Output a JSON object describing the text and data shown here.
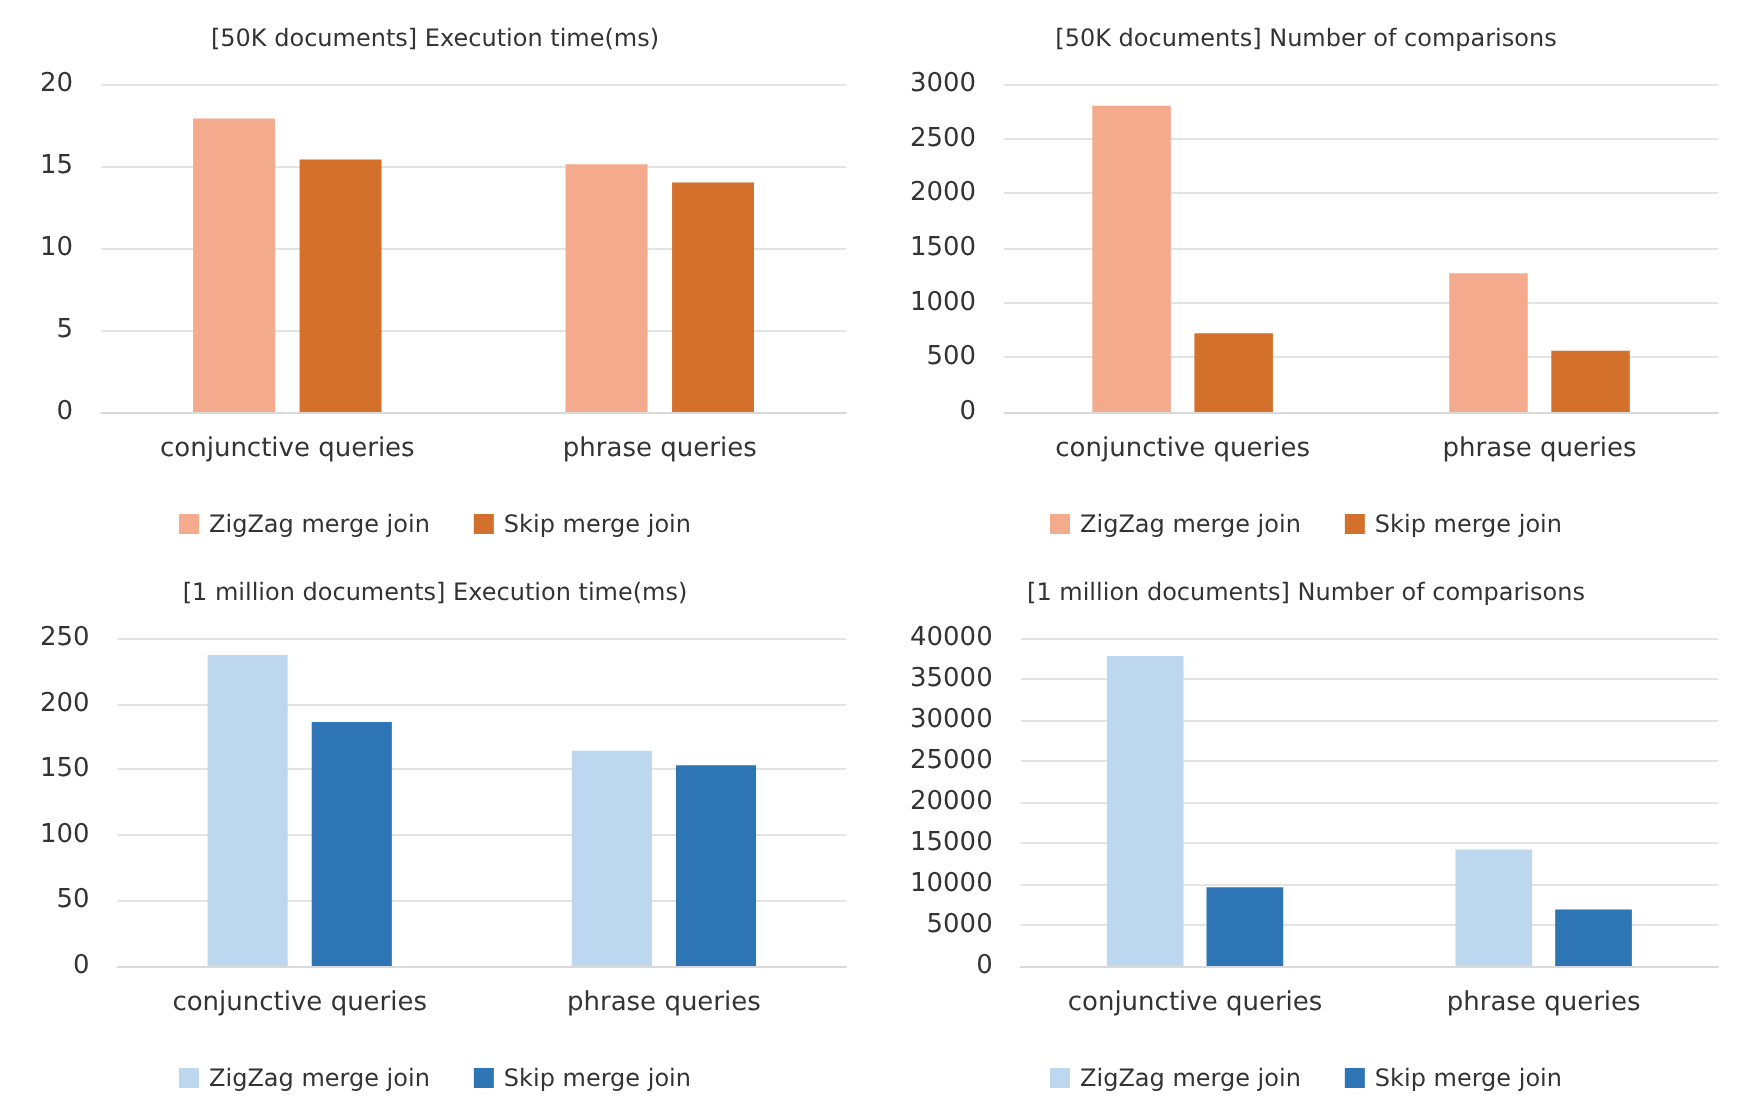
{
  "chart_data": [
    {
      "type": "bar",
      "title": "[50K documents] Execution time(ms)",
      "categories": [
        "conjunctive queries",
        "phrase queries"
      ],
      "series": [
        {
          "name": "ZigZag merge join",
          "color": "#f4aa8c",
          "values": [
            17.9,
            15.1
          ]
        },
        {
          "name": "Skip merge join",
          "color": "#d2702c",
          "values": [
            15.4,
            14.0
          ]
        }
      ],
      "ylim": [
        0,
        20
      ],
      "yticks": [
        0,
        5,
        10,
        15,
        20
      ],
      "grid": "y",
      "legend": "bottom"
    },
    {
      "type": "bar",
      "title": "[50K documents] Number of comparisons",
      "categories": [
        "conjunctive queries",
        "phrase queries"
      ],
      "series": [
        {
          "name": "ZigZag merge join",
          "color": "#f4aa8c",
          "values": [
            2800,
            1270
          ]
        },
        {
          "name": "Skip merge join",
          "color": "#d2702c",
          "values": [
            720,
            560
          ]
        }
      ],
      "ylim": [
        0,
        3000
      ],
      "yticks": [
        0,
        500,
        1000,
        1500,
        2000,
        2500,
        3000
      ],
      "grid": "y",
      "legend": "bottom"
    },
    {
      "type": "bar",
      "title": "[1 million documents] Execution time(ms)",
      "categories": [
        "conjunctive queries",
        "phrase queries"
      ],
      "series": [
        {
          "name": "ZigZag merge join",
          "color": "#bdd7ee",
          "values": [
            237,
            164
          ]
        },
        {
          "name": "Skip merge join",
          "color": "#2e75b6",
          "values": [
            186,
            153
          ]
        }
      ],
      "ylim": [
        0,
        250
      ],
      "yticks": [
        0,
        50,
        100,
        150,
        200,
        250
      ],
      "grid": "y",
      "legend": "bottom"
    },
    {
      "type": "bar",
      "title": "[1 million documents] Number of comparisons",
      "categories": [
        "conjunctive queries",
        "phrase queries"
      ],
      "series": [
        {
          "name": "ZigZag merge join",
          "color": "#bdd7ee",
          "values": [
            37800,
            14200
          ]
        },
        {
          "name": "Skip merge join",
          "color": "#2e75b6",
          "values": [
            9600,
            6900
          ]
        }
      ],
      "ylim": [
        0,
        40000
      ],
      "yticks": [
        0,
        5000,
        10000,
        15000,
        20000,
        25000,
        30000,
        35000,
        40000
      ],
      "grid": "y",
      "legend": "bottom"
    }
  ]
}
